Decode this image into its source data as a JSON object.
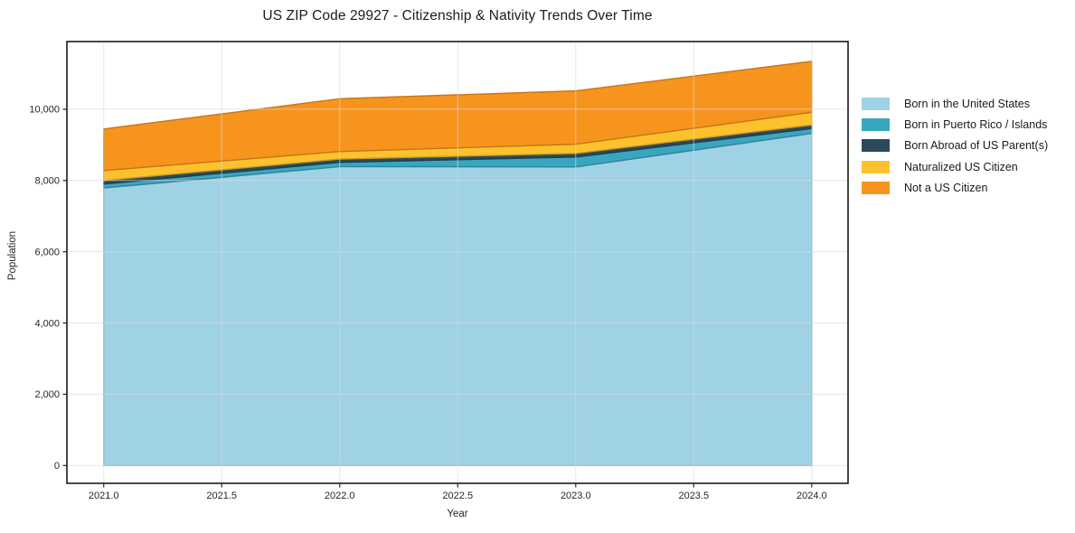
{
  "page": {
    "title": "US ZIP Code 29927 - Citizenship & Nativity Trends Over Time"
  },
  "chart_data": {
    "type": "area",
    "stacked": true,
    "title": "US ZIP Code 29927 - Citizenship & Nativity Trends Over Time",
    "xlabel": "Year",
    "ylabel": "Population",
    "x": [
      2021,
      2022,
      2023,
      2024
    ],
    "series": [
      {
        "name": "Born in the United States",
        "color": "#a0d2e6",
        "values": [
          7790,
          8390,
          8380,
          9320
        ]
      },
      {
        "name": "Born in Puerto Rico / Islands",
        "color": "#39a6bf",
        "values": [
          110,
          120,
          280,
          140
        ]
      },
      {
        "name": "Born Abroad of US Parent(s)",
        "color": "#2b4a5c",
        "values": [
          100,
          90,
          100,
          100
        ]
      },
      {
        "name": "Naturalized US Citizen",
        "color": "#fcc22e",
        "values": [
          280,
          215,
          260,
          355
        ]
      },
      {
        "name": "Not a US Citizen",
        "color": "#f7941e",
        "values": [
          1165,
          1480,
          1495,
          1430
        ]
      }
    ],
    "totals": [
      9445,
      10295,
      10515,
      11345
    ],
    "x_ticks": {
      "values": [
        2021.0,
        2021.5,
        2022.0,
        2022.5,
        2023.0,
        2023.5,
        2024.0
      ],
      "labels": [
        "2021.0",
        "2021.5",
        "2022.0",
        "2022.5",
        "2023.0",
        "2023.5",
        "2024.0"
      ]
    },
    "y_ticks": {
      "values": [
        0,
        2000,
        4000,
        6000,
        8000,
        10000
      ],
      "labels": [
        "0",
        "2,000",
        "4,000",
        "6,000",
        "8,000",
        "10,000"
      ]
    },
    "xlim": [
      2020.844,
      2024.154
    ],
    "ylim": [
      -500,
      11900
    ],
    "grid": true,
    "legend_position": "outside-right"
  },
  "style": {
    "frame_color": "#1a1a1a",
    "grid_color": "#d9d9d9",
    "tick_color": "#262626",
    "tick_label_color": "#262626",
    "background": "#ffffff"
  }
}
